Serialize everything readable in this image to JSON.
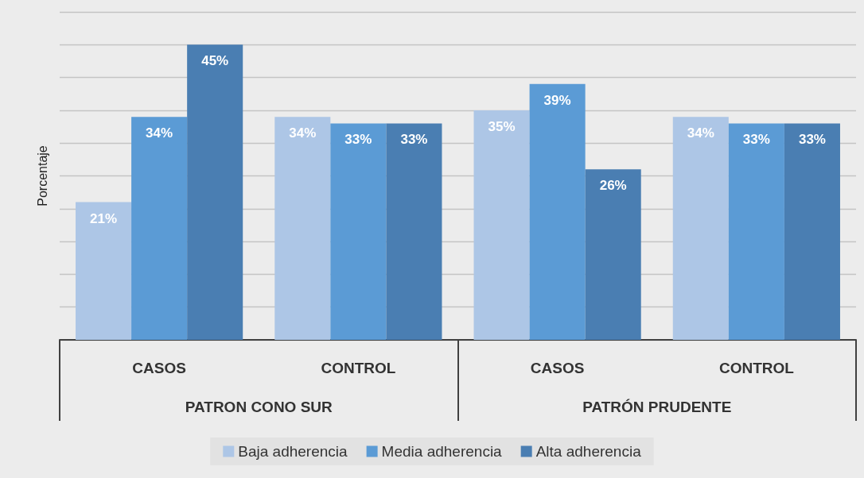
{
  "chart_data": {
    "type": "bar",
    "ylabel": "Porcentaje",
    "categories": [
      "CASOS",
      "CONTROL",
      "CASOS",
      "CONTROL"
    ],
    "annotations": [
      "PATRON CONO SUR",
      "PATRÓN PRUDENTE"
    ],
    "series": [
      {
        "name": "Baja adherencia",
        "color": "#adc6e6",
        "values": [
          21,
          34,
          35,
          34
        ],
        "value_labels": [
          "21%",
          "34%",
          "35%",
          "34%"
        ]
      },
      {
        "name": "Media adherencia",
        "color": "#5b9bd5",
        "values": [
          34,
          33,
          39,
          33
        ],
        "value_labels": [
          "34%",
          "33%",
          "39%",
          "33%"
        ]
      },
      {
        "name": "Alta adherencia",
        "color": "#4a7eb2",
        "values": [
          45,
          33,
          26,
          33
        ],
        "value_labels": [
          "45%",
          "33%",
          "26%",
          "33%"
        ]
      }
    ],
    "ylim": [
      0,
      50
    ],
    "yticks": [
      {
        "value": 0,
        "label": null
      },
      {
        "value": 5,
        "label": null
      },
      {
        "value": 10,
        "label": null
      },
      {
        "value": 15,
        "label": null
      },
      {
        "value": 20,
        "label": null
      },
      {
        "value": 25,
        "label": null
      },
      {
        "value": 30,
        "label": null
      },
      {
        "value": 35,
        "label": null
      },
      {
        "value": 40,
        "label": null
      },
      {
        "value": 45,
        "label": null
      },
      {
        "value": 50,
        "label": null
      }
    ],
    "tick_labels": "x",
    "grid": "y",
    "legend": "bottom"
  }
}
